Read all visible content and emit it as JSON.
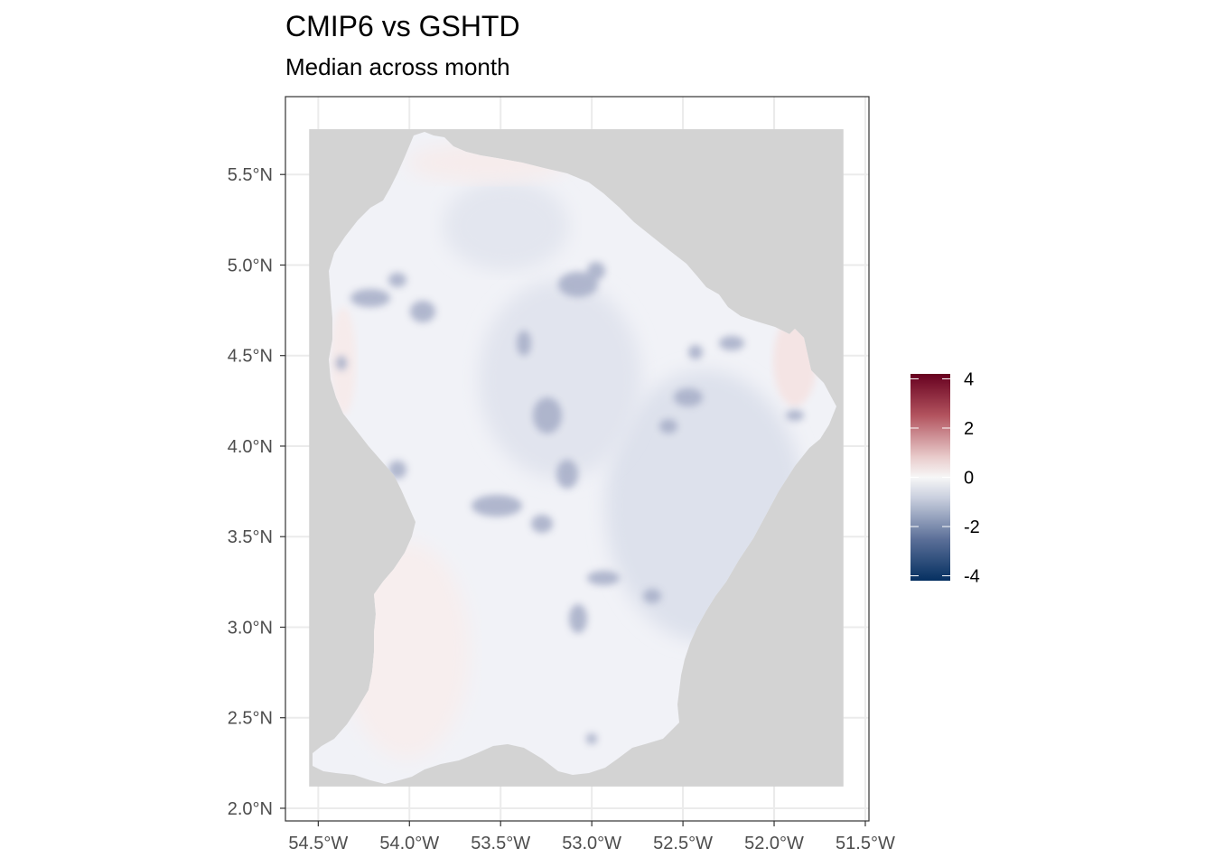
{
  "title": "CMIP6 vs GSHTD",
  "subtitle": "Median across month",
  "map": {
    "region_fill": "#d3d3d3",
    "panel_border": "#333333",
    "grid_color": "#ebebeb",
    "x_ticks": [
      "54.5°W",
      "54.0°W",
      "53.5°W",
      "53.0°W",
      "52.5°W",
      "52.0°W",
      "51.5°W"
    ],
    "y_ticks": [
      "5.5°N",
      "5.0°N",
      "4.5°N",
      "4.0°N",
      "3.5°N",
      "3.0°N",
      "2.5°N",
      "2.0°N"
    ],
    "x_tick_values": [
      -54.5,
      -54.0,
      -53.5,
      -53.0,
      -52.5,
      -52.0,
      -51.5
    ],
    "y_tick_values": [
      5.5,
      5.0,
      4.5,
      4.0,
      3.5,
      3.0,
      2.5,
      2.0
    ],
    "x_range": [
      -54.68,
      -51.48
    ],
    "y_range": [
      1.93,
      5.93
    ],
    "raster_extent": {
      "lon": [
        -54.55,
        -51.62
      ],
      "lat": [
        2.12,
        5.75
      ]
    }
  },
  "legend": {
    "labels": [
      "4",
      "2",
      "0",
      "-2",
      "-4"
    ],
    "values": [
      4,
      2,
      0,
      -2,
      -4
    ],
    "range": [
      -4.2,
      4.2
    ],
    "colors": {
      "high": "#67001f",
      "mid": "#f7f7f7",
      "low": "#053061"
    }
  }
}
